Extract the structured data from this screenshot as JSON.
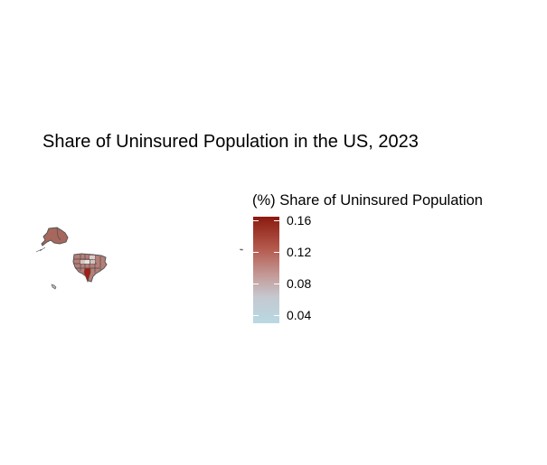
{
  "title": "Share of Uninsured Population in the US, 2023",
  "legend": {
    "title": "(%) Share of Uninsured Population",
    "ticks": [
      {
        "label": "0.16",
        "value": 0.16
      },
      {
        "label": "0.12",
        "value": 0.12
      },
      {
        "label": "0.08",
        "value": 0.08
      },
      {
        "label": "0.04",
        "value": 0.04
      }
    ],
    "range": [
      0.03,
      0.165
    ],
    "colors": {
      "high": "#8b1a0f",
      "mid": "#c39a97",
      "low": "#b8d9e3"
    }
  },
  "map": {
    "regions": [
      "alaska",
      "hawaii",
      "contiguous-us",
      "puerto-rico"
    ],
    "highlight_region": "texas",
    "highlight_color": "#a51d14"
  }
}
